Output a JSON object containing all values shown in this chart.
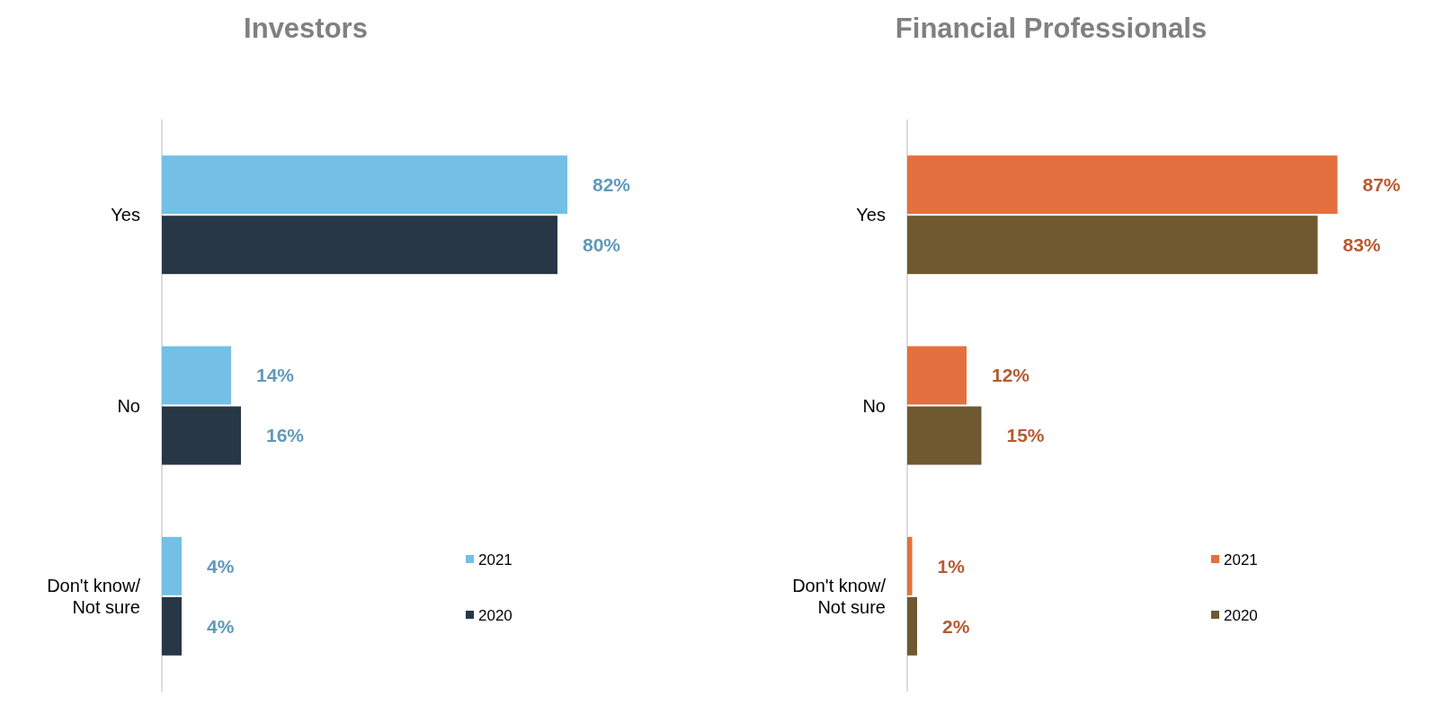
{
  "chart_data": [
    {
      "type": "bar",
      "title": "Investors",
      "orientation": "horizontal",
      "categories": [
        "Yes",
        "No",
        "Don't know/\nNot sure"
      ],
      "data_labels": true,
      "legend": "bottom right",
      "series": [
        {
          "name": "2021",
          "color": "#74bfe6",
          "values": [
            82,
            14,
            4
          ],
          "value_labels": [
            "82%",
            "14%",
            "4%"
          ]
        },
        {
          "name": "2020",
          "color": "#283745",
          "values": [
            80,
            16,
            4
          ],
          "value_labels": [
            "80%",
            "16%",
            "4%"
          ]
        }
      ]
    },
    {
      "type": "bar",
      "title": "Financial Professionals",
      "orientation": "horizontal",
      "categories": [
        "Yes",
        "No",
        "Don't know/\nNot sure"
      ],
      "data_labels": true,
      "legend": "bottom right",
      "series": [
        {
          "name": "2021",
          "color": "#e3703e",
          "values": [
            87,
            12,
            1
          ],
          "value_labels": [
            "87%",
            "12%",
            "1%"
          ]
        },
        {
          "name": "2020",
          "color": "#705930",
          "values": [
            83,
            15,
            2
          ],
          "value_labels": [
            "83%",
            "15%",
            "2%"
          ]
        }
      ]
    }
  ]
}
